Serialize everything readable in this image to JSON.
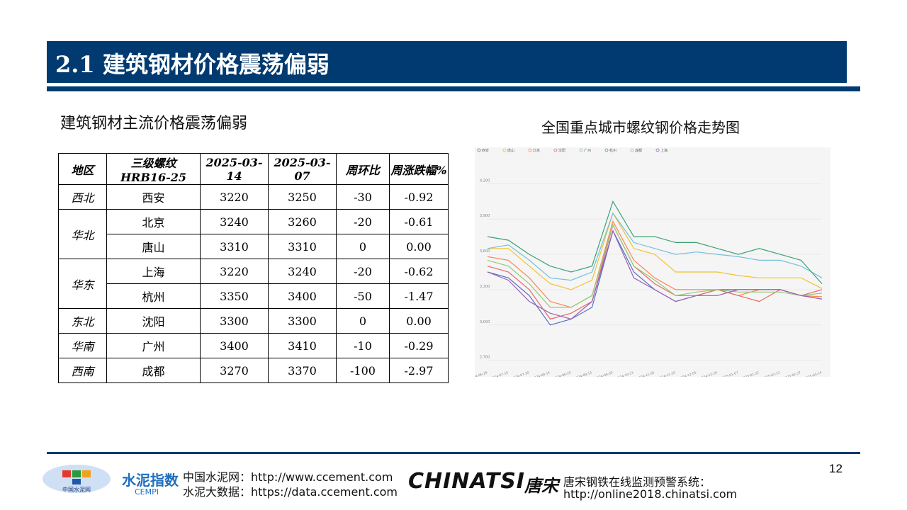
{
  "header": {
    "title": "2.1 建筑钢材价格震荡偏弱"
  },
  "subtitle": "建筑钢材主流价格震荡偏弱",
  "table": {
    "header": [
      "地区",
      "三级螺纹HRB16-25",
      "2025-03-14",
      "2025-03-07",
      "周环比",
      "周涨跌幅%"
    ],
    "rows": [
      [
        "西北",
        "西安",
        "3220",
        "3250",
        "-30",
        "-0.92"
      ],
      [
        "华北",
        "北京",
        "3240",
        "3260",
        "-20",
        "-0.61"
      ],
      [
        "唐山",
        "3310",
        "3310",
        "0",
        "0.00"
      ],
      [
        "华东",
        "上海",
        "3220",
        "3240",
        "-20",
        "-0.62"
      ],
      [
        "杭州",
        "3350",
        "3400",
        "-50",
        "-1.47"
      ],
      [
        "东北",
        "沈阳",
        "3300",
        "3300",
        "0",
        "0.00"
      ],
      [
        "华南",
        "广州",
        "3400",
        "3410",
        "-10",
        "-0.29"
      ],
      [
        "西南",
        "成都",
        "3270",
        "3370",
        "-100",
        "-2.97"
      ]
    ]
  },
  "chart_caption": "全国重点城市螺纹钢价格走势图",
  "chart_data": {
    "type": "line",
    "categories": [
      "2024-06-28",
      "2024-07-15",
      "2024-07-30",
      "2024-08-14",
      "2024-08-29",
      "2024-09-13",
      "2024-09-30",
      "2024-10-21",
      "2024-11-05",
      "2024-11-20",
      "2024-12-05",
      "2024-12-20",
      "2025-01-07",
      "2025-01-22",
      "2025-02-12",
      "2025-02-27",
      "2025-03-14"
    ],
    "ylim": [
      2650,
      4250
    ],
    "yticks": [
      {
        "value": 2700,
        "label": "2,700"
      },
      {
        "value": 3000,
        "label": "3,000"
      },
      {
        "value": 3300,
        "label": "3,300"
      },
      {
        "value": 3600,
        "label": "3,600"
      },
      {
        "value": 3900,
        "label": "3,900"
      },
      {
        "value": 4200,
        "label": "4,200"
      }
    ],
    "grid": true,
    "series": [
      {
        "name": "西安",
        "color": "#5470c6",
        "values": [
          3450,
          3400,
          3250,
          3000,
          3050,
          3150,
          3800,
          3450,
          3300,
          3200,
          3250,
          3300,
          3300,
          3300,
          3300,
          3250,
          3220
        ]
      },
      {
        "name": "唐山",
        "color": "#f1c232",
        "values": [
          3650,
          3650,
          3500,
          3350,
          3300,
          3380,
          3950,
          3650,
          3600,
          3450,
          3450,
          3450,
          3420,
          3400,
          3400,
          3400,
          3310
        ]
      },
      {
        "name": "北京",
        "color": "#fc8452",
        "values": [
          3580,
          3550,
          3400,
          3200,
          3150,
          3250,
          3880,
          3550,
          3400,
          3300,
          3300,
          3300,
          3250,
          3300,
          3300,
          3250,
          3240
        ]
      },
      {
        "name": "沈阳",
        "color": "#ee6666",
        "values": [
          3500,
          3450,
          3300,
          3050,
          3100,
          3200,
          3850,
          3500,
          3350,
          3250,
          3250,
          3300,
          3250,
          3200,
          3300,
          3250,
          3300
        ]
      },
      {
        "name": "广州",
        "color": "#73c0de",
        "values": [
          3650,
          3680,
          3550,
          3400,
          3380,
          3450,
          3950,
          3700,
          3650,
          3600,
          3620,
          3600,
          3580,
          3550,
          3550,
          3500,
          3400
        ]
      },
      {
        "name": "杭州",
        "color": "#3ba272",
        "values": [
          3750,
          3720,
          3600,
          3500,
          3450,
          3500,
          4050,
          3750,
          3750,
          3700,
          3700,
          3650,
          3600,
          3650,
          3600,
          3550,
          3350
        ]
      },
      {
        "name": "成都",
        "color": "#91cc75",
        "values": [
          3550,
          3500,
          3350,
          3150,
          3150,
          3250,
          3850,
          3500,
          3380,
          3250,
          3280,
          3300,
          3280,
          3280,
          3280,
          3250,
          3270
        ]
      },
      {
        "name": "上海",
        "color": "#9a60b4",
        "values": [
          3450,
          3380,
          3200,
          3100,
          3050,
          3200,
          3800,
          3400,
          3300,
          3200,
          3250,
          3250,
          3300,
          3300,
          3300,
          3250,
          3220
        ]
      }
    ]
  },
  "footer": {
    "page": "12",
    "ccement": "中国水泥网：http://www.ccement.com",
    "data": "水泥大数据：https://data.ccement.com",
    "brand": "CHINATSI",
    "brand_cn": "唐宋",
    "system": "唐宋钢铁在线监测预警系统：",
    "system_url": "http://online2018.chinatsi.com",
    "logo1": "中国水泥网",
    "logo2": "水泥指数",
    "logo2_sub": "CEMPI"
  }
}
